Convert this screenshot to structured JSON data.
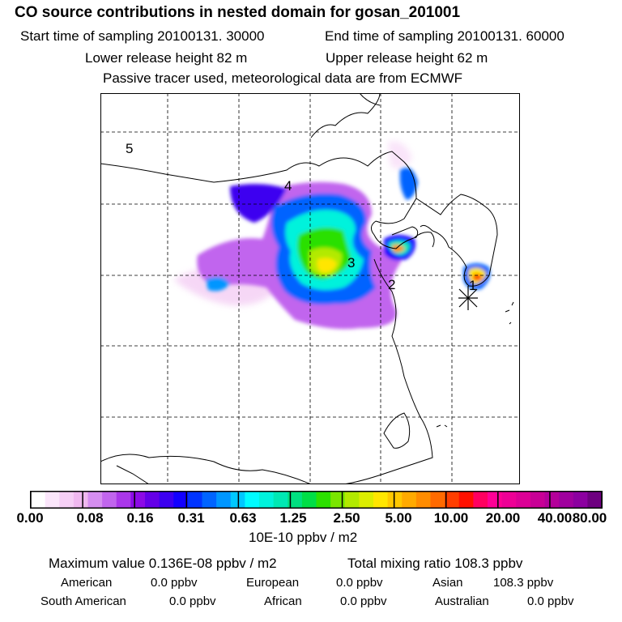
{
  "header": {
    "title": "CO  source contributions in nested domain for gosan_201001",
    "start_time": "Start time of sampling 20100131. 30000",
    "end_time": "End time of sampling 20100131. 60000",
    "lower_height": "Lower release height   82 m",
    "upper_height": "Upper release height   62 m",
    "note": "Passive tracer used, meteorological data are from ECMWF"
  },
  "map": {
    "labels": [
      "1",
      "2",
      "3",
      "4",
      "5"
    ],
    "receptor_marker": "asterisk-icon"
  },
  "colorbar": {
    "colors": [
      "#ffffff",
      "#fbe6fb",
      "#f5cff5",
      "#efb8ef",
      "#d58ef0",
      "#c165ee",
      "#aa37ea",
      "#8c0ae6",
      "#6400e8",
      "#3c00f0",
      "#1200ff",
      "#0034ff",
      "#0064ff",
      "#0096ff",
      "#00c8ff",
      "#00fcff",
      "#00f2dc",
      "#00e8b4",
      "#00e080",
      "#00de46",
      "#2ce000",
      "#7ae600",
      "#b2ea00",
      "#dcee00",
      "#ffe600",
      "#ffc800",
      "#ffaa00",
      "#ff8c00",
      "#ff6a00",
      "#ff3e00",
      "#ff1000",
      "#ff0060",
      "#ff0096",
      "#ee0096",
      "#dc0096",
      "#c80096",
      "#b4009a",
      "#a0009e",
      "#8c00a0",
      "#6e0080"
    ],
    "ticks": [
      "0.00",
      "0.08",
      "0.16",
      "0.31",
      "0.63",
      "1.25",
      "2.50",
      "5.00",
      "10.00",
      "20.00",
      "40.00",
      "80.00"
    ],
    "unit": "10E-10 ppbv / m2"
  },
  "footer": {
    "max_value": "Maximum value  0.136E-08 ppbv / m2",
    "total_mixing": "Total mixing ratio     108.3 ppbv",
    "american_label": "American",
    "american_val": "0.0 ppbv",
    "european_label": "European",
    "european_val": "0.0 ppbv",
    "asian_label": "Asian",
    "asian_val": "108.3 ppbv",
    "south_american_label": "South American",
    "south_american_val": "0.0 ppbv",
    "african_label": "African",
    "african_val": "0.0 ppbv",
    "australian_label": "Australian",
    "australian_val": "0.0 ppbv"
  }
}
